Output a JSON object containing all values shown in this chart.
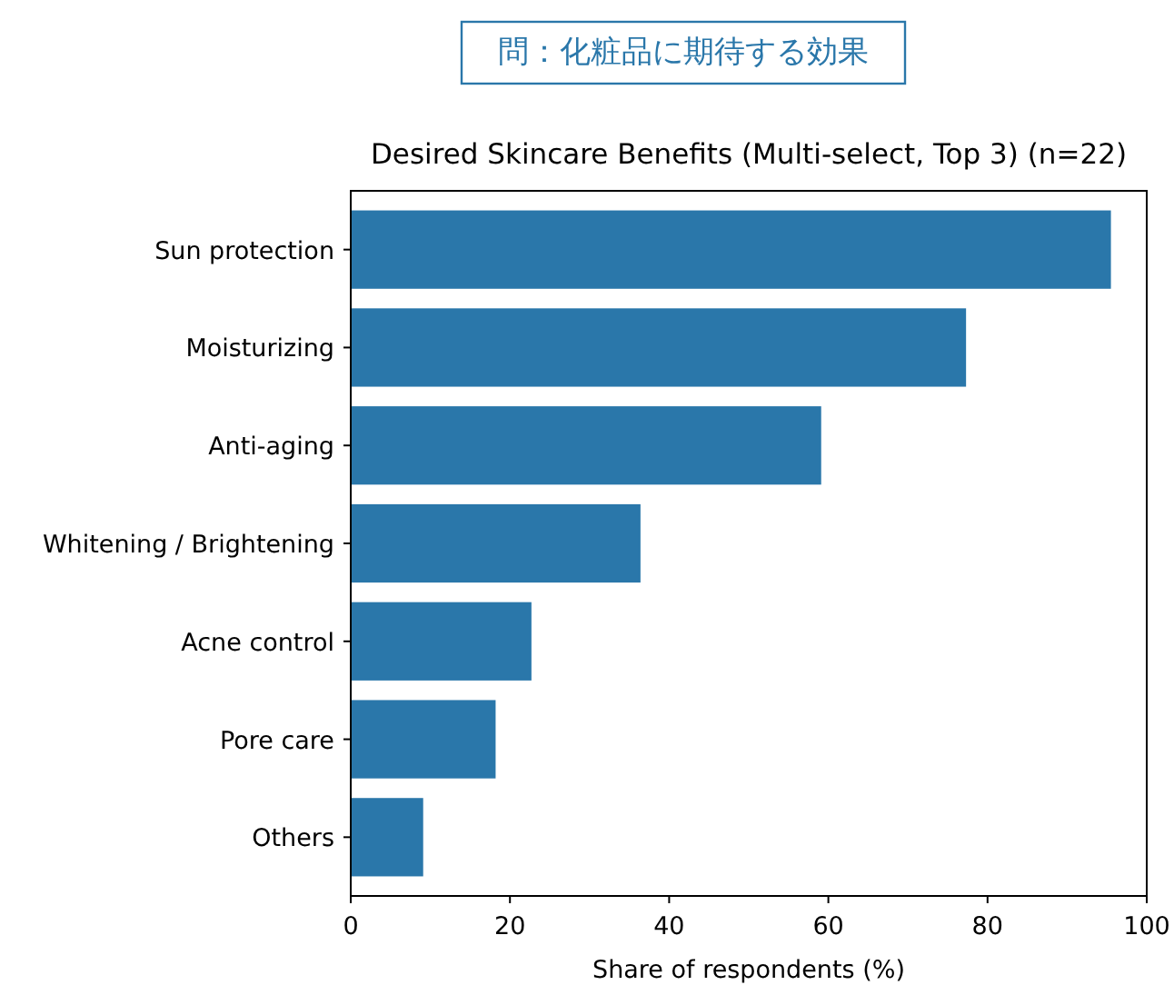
{
  "chart_data": {
    "type": "bar",
    "orientation": "horizontal",
    "title": "問：化粧品に期待する効果",
    "subtitle": "Desired Skincare Benefits (Multi-select, Top 3) (n=22)",
    "xlabel": "Share of respondents (%)",
    "categories": [
      "Sun protection",
      "Moisturizing",
      "Anti-aging",
      "Whitening / Brightening",
      "Acne control",
      "Pore care",
      "Others"
    ],
    "values": [
      95.5,
      77.3,
      59.1,
      36.4,
      22.7,
      18.2,
      9.1
    ],
    "color": "#2a77aa",
    "xlim": [
      0,
      100
    ],
    "xticks": [
      0,
      20,
      40,
      60,
      80,
      100
    ],
    "grid": false
  }
}
